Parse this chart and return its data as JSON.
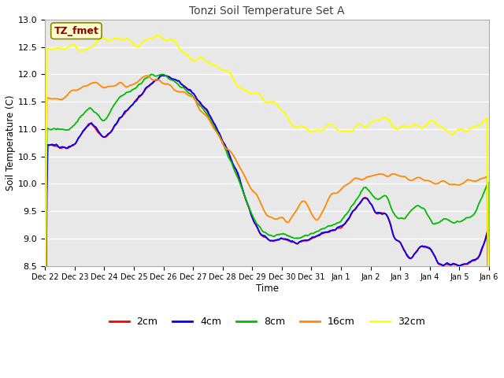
{
  "title": "Tonzi Soil Temperature Set A",
  "xlabel": "Time",
  "ylabel": "Soil Temperature (C)",
  "annotation": "TZ_fmet",
  "ylim": [
    8.5,
    13.0
  ],
  "series_colors": {
    "2cm": "#ff0000",
    "4cm": "#0000ff",
    "8cm": "#00bb00",
    "16cm": "#ff8800",
    "32cm": "#ffff00"
  },
  "fig_bg": "#f0f0f0",
  "plot_bg": "#e8e8e8",
  "band_color1": "#e8e8e8",
  "band_color2": "#d8d8d8",
  "grid_color": "#ffffff",
  "tick_labels": [
    "Dec 22",
    "Dec 23",
    "Dec 24",
    "Dec 25",
    "Dec 26",
    "Dec 27",
    "Dec 28",
    "Dec 29",
    "Dec 30",
    "Dec 31",
    "Jan 1",
    "Jan 2",
    "Jan 3",
    "Jan 4",
    "Jan 5",
    "Jan 6"
  ],
  "n_points": 480
}
